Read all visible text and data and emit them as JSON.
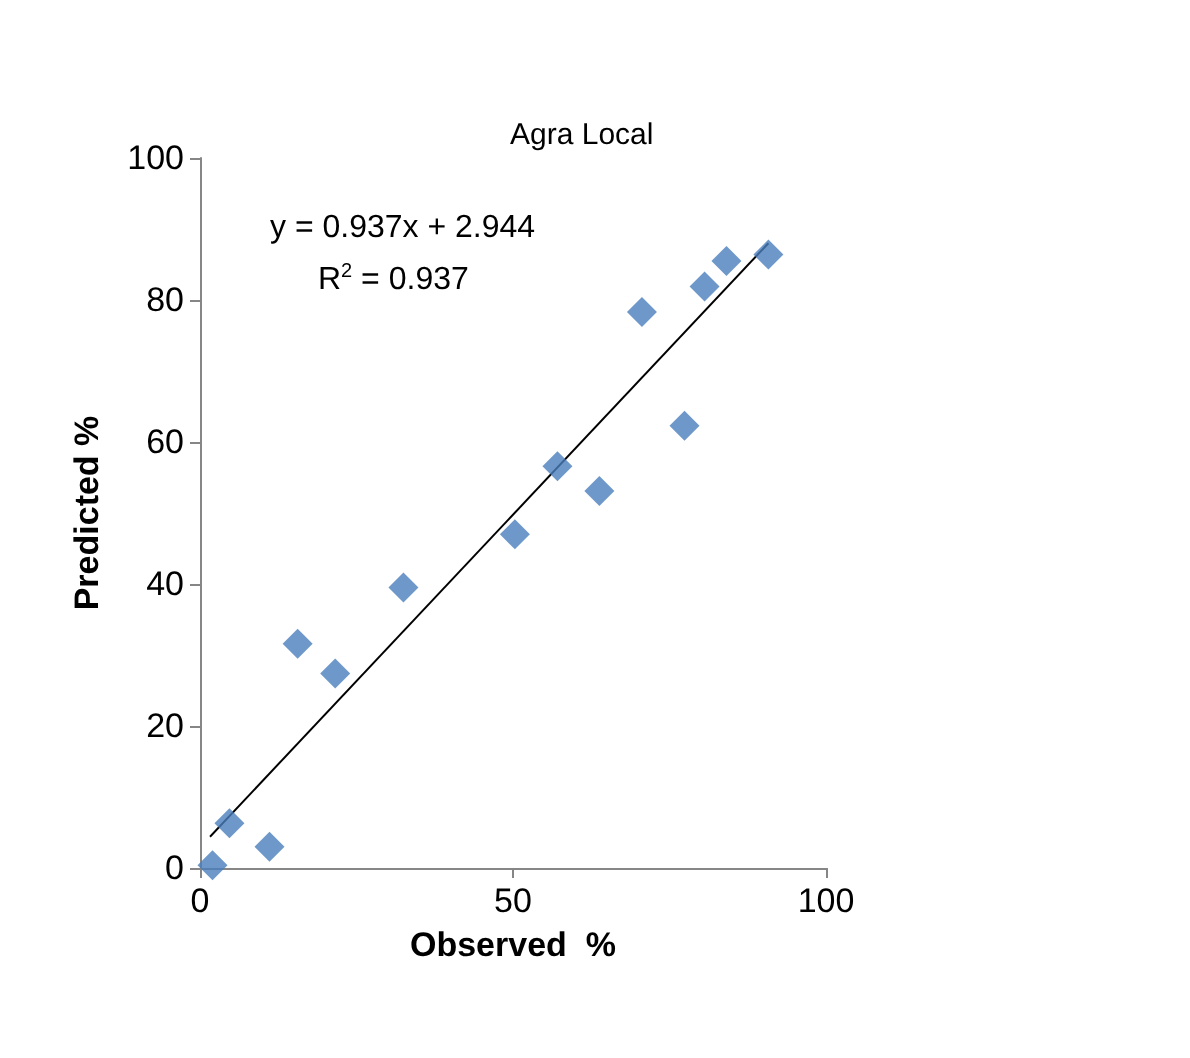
{
  "chart_data": {
    "type": "scatter",
    "title": "Agra Local",
    "xlabel": "Observed  %",
    "ylabel": "Predicted %",
    "annotations": [
      "y = 0.937x + 2.944",
      "R$^{2}$ = 0.937"
    ],
    "x": [
      2,
      4.7,
      11.1,
      15.6,
      21.6,
      32.5,
      50.3,
      57.1,
      63.8,
      70.6,
      77.4,
      80.6,
      84.1,
      90.8
    ],
    "series": [
      {
        "color": "#4a7ebb",
        "marker": "diamond",
        "values": [
          0.4,
          6.3,
          3.0,
          31.6,
          27.4,
          39.5,
          47.0,
          56.6,
          53.1,
          78.3,
          62.3,
          81.9,
          85.5,
          86.4
        ]
      },
      {
        "type": "line",
        "color": "#000000",
        "marker": "none",
        "line_style": "solid",
        "x": [
          1.6,
          90.8
        ],
        "values": [
          4.4,
          88.0
        ]
      }
    ],
    "xlim": [
      0,
      100
    ],
    "xticks": [
      0,
      50,
      100
    ],
    "ylim": [
      0,
      100
    ],
    "yticks": [
      0,
      20,
      40,
      60,
      80,
      100
    ],
    "grid": false
  }
}
